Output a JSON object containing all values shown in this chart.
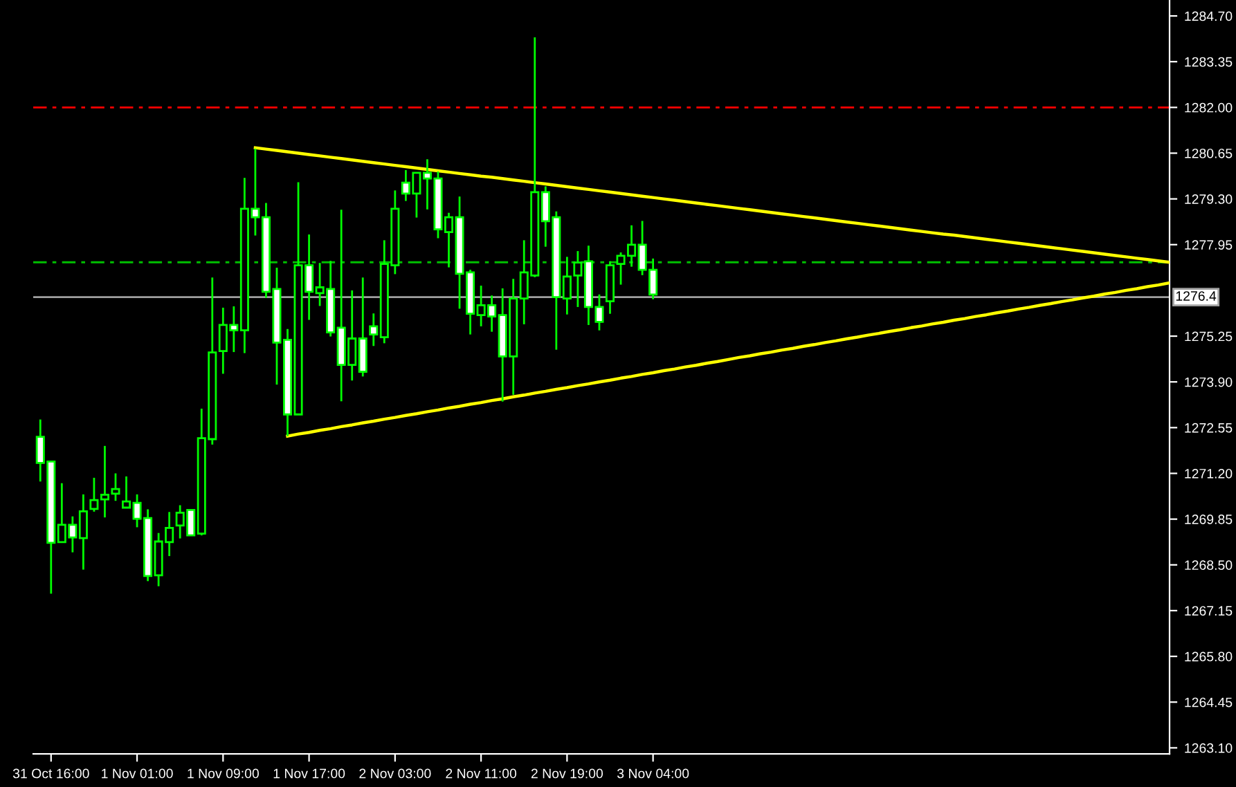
{
  "chart_data": {
    "type": "candlestick",
    "categories": [
      null,
      "31 Oct 16:00",
      null,
      null,
      null,
      null,
      null,
      null,
      null,
      "1 Nov 01:00",
      null,
      null,
      null,
      null,
      null,
      null,
      null,
      "1 Nov 09:00",
      null,
      null,
      null,
      null,
      null,
      null,
      null,
      "1 Nov 17:00",
      null,
      null,
      null,
      null,
      null,
      null,
      null,
      "2 Nov 03:00",
      null,
      null,
      null,
      null,
      null,
      null,
      null,
      "2 Nov 11:00",
      null,
      null,
      null,
      null,
      null,
      null,
      null,
      "2 Nov 19:00",
      null,
      null,
      null,
      null,
      null,
      null,
      null,
      "3 Nov 04:00",
      null,
      null,
      null,
      null,
      null,
      null,
      null,
      null,
      null,
      null,
      null,
      null,
      null,
      null,
      null,
      null,
      null,
      null,
      null,
      null,
      null,
      null,
      null,
      null,
      null,
      null,
      null,
      null,
      null,
      null,
      null,
      null,
      null,
      null,
      null,
      null,
      null,
      null,
      null,
      null,
      null,
      null,
      null,
      null,
      null,
      null,
      null,
      null
    ],
    "ohlc": [
      [
        1272.28,
        1272.79,
        1270.96,
        1271.51
      ],
      [
        1271.55,
        1271.55,
        1267.65,
        1269.15
      ],
      [
        1269.17,
        1270.91,
        1269.17,
        1269.68
      ],
      [
        1269.68,
        1269.93,
        1268.87,
        1269.31
      ],
      [
        1269.29,
        1270.58,
        1268.36,
        1270.08
      ],
      [
        1270.15,
        1271.07,
        1270.07,
        1270.41
      ],
      [
        1270.43,
        1272.01,
        1269.9,
        1270.57
      ],
      [
        1270.6,
        1271.2,
        1270.39,
        1270.74
      ],
      [
        1270.19,
        1271.11,
        1270.19,
        1270.37
      ],
      [
        1270.33,
        1270.58,
        1269.61,
        1269.86
      ],
      [
        1269.88,
        1270.14,
        1268.02,
        1268.17
      ],
      [
        1268.19,
        1269.44,
        1267.87,
        1269.19
      ],
      [
        1269.17,
        1270.06,
        1268.76,
        1269.59
      ],
      [
        1269.66,
        1270.26,
        1269.28,
        1270.04
      ],
      [
        1270.12,
        1270.12,
        1269.37,
        1269.37
      ],
      [
        1269.42,
        1273.11,
        1269.37,
        1272.24
      ],
      [
        1272.21,
        1276.98,
        1272.05,
        1274.77
      ],
      [
        1274.81,
        1276.09,
        1274.14,
        1275.58
      ],
      [
        1275.58,
        1276.13,
        1274.78,
        1275.42
      ],
      [
        1275.42,
        1279.92,
        1274.75,
        1279.01
      ],
      [
        1279.01,
        1280.78,
        1278.22,
        1278.76
      ],
      [
        1278.76,
        1279.18,
        1276.38,
        1276.56
      ],
      [
        1276.64,
        1277.27,
        1273.82,
        1275.06
      ],
      [
        1275.14,
        1275.46,
        1272.3,
        1272.94
      ],
      [
        1272.94,
        1279.79,
        1272.94,
        1277.34
      ],
      [
        1277.34,
        1278.25,
        1275.73,
        1276.56
      ],
      [
        1276.52,
        1277.41,
        1276.14,
        1276.69
      ],
      [
        1276.64,
        1277.47,
        1275.24,
        1275.36
      ],
      [
        1275.5,
        1278.98,
        1273.33,
        1274.4
      ],
      [
        1274.4,
        1276.6,
        1273.94,
        1275.18
      ],
      [
        1275.18,
        1276.98,
        1274.06,
        1274.2
      ],
      [
        1275.54,
        1275.92,
        1274.96,
        1275.3
      ],
      [
        1275.22,
        1278.08,
        1275.04,
        1277.38
      ],
      [
        1277.34,
        1279.55,
        1277.08,
        1279.01
      ],
      [
        1279.78,
        1280.15,
        1279.24,
        1279.46
      ],
      [
        1279.46,
        1280.07,
        1278.75,
        1280.07
      ],
      [
        1280.07,
        1280.47,
        1278.99,
        1279.9
      ],
      [
        1279.9,
        1280.11,
        1278.14,
        1278.4
      ],
      [
        1278.32,
        1278.89,
        1277.28,
        1278.76
      ],
      [
        1278.76,
        1279.37,
        1276.06,
        1277.09
      ],
      [
        1277.13,
        1277.21,
        1275.3,
        1275.91
      ],
      [
        1275.87,
        1276.74,
        1275.54,
        1276.16
      ],
      [
        1276.16,
        1276.45,
        1275.38,
        1275.83
      ],
      [
        1275.87,
        1276.66,
        1273.32,
        1274.65
      ],
      [
        1274.65,
        1276.94,
        1273.52,
        1276.36
      ],
      [
        1276.36,
        1278.08,
        1275.6,
        1277.13
      ],
      [
        1277.04,
        1284.07,
        1276.99,
        1279.5
      ],
      [
        1279.5,
        1279.67,
        1277.89,
        1278.64
      ],
      [
        1278.76,
        1278.93,
        1274.85,
        1276.4
      ],
      [
        1276.36,
        1277.59,
        1275.89,
        1277.01
      ],
      [
        1277.04,
        1277.76,
        1276.11,
        1277.42
      ],
      [
        1277.46,
        1277.92,
        1275.58,
        1276.11
      ],
      [
        1276.11,
        1276.48,
        1275.42,
        1275.67
      ],
      [
        1276.28,
        1277.46,
        1275.91,
        1277.34
      ],
      [
        1277.38,
        1277.72,
        1276.77,
        1277.62
      ],
      [
        1277.62,
        1278.52,
        1277.3,
        1277.95
      ],
      [
        1277.95,
        1278.65,
        1277.05,
        1277.21
      ],
      [
        1277.21,
        1277.54,
        1276.34,
        1276.48
      ],
      null,
      null,
      null,
      null,
      null,
      null,
      null,
      null,
      null,
      null,
      null,
      null,
      null,
      null,
      null,
      null,
      null,
      null,
      null,
      null,
      null,
      null,
      null,
      null,
      null,
      null,
      null,
      null,
      null,
      null,
      null,
      null,
      null,
      null,
      null,
      null,
      null,
      null,
      null,
      null,
      null,
      null,
      null,
      null,
      null,
      null,
      null,
      null
    ],
    "series": [
      {
        "type": "line",
        "color": "#ffff00",
        "values": [
          null,
          null,
          null,
          null,
          null,
          null,
          null,
          null,
          null,
          null,
          null,
          null,
          null,
          null,
          null,
          null,
          null,
          null,
          null,
          null,
          1280.81,
          1280.77,
          1280.73,
          1280.69,
          1280.65,
          1280.61,
          1280.57,
          1280.53,
          1280.49,
          1280.45,
          1280.41,
          1280.37,
          1280.33,
          1280.29,
          1280.25,
          1280.21,
          1280.17,
          1280.13,
          1280.09,
          1280.05,
          1280.01,
          1279.97,
          1279.94,
          1279.9,
          1279.86,
          1279.82,
          1279.78,
          1279.74,
          1279.7,
          1279.66,
          1279.62,
          1279.58,
          1279.54,
          1279.5,
          1279.46,
          1279.42,
          1279.38,
          1279.34,
          1279.3,
          1279.26,
          1279.22,
          1279.18,
          1279.14,
          1279.1,
          1279.06,
          1279.02,
          1278.98,
          1278.94,
          1278.9,
          1278.86,
          1278.82,
          1278.78,
          1278.74,
          1278.7,
          1278.66,
          1278.62,
          1278.58,
          1278.54,
          1278.5,
          1278.46,
          1278.42,
          1278.38,
          1278.34,
          1278.3,
          1278.26,
          1278.23,
          1278.19,
          1278.15,
          1278.11,
          1278.07,
          1278.03,
          1277.99,
          1277.95,
          1277.91,
          1277.87,
          1277.83,
          1277.79,
          1277.75,
          1277.71,
          1277.67,
          1277.63,
          1277.59,
          1277.55,
          1277.51,
          1277.47,
          1277.43
        ]
      },
      {
        "type": "line",
        "color": "#ffff00",
        "values": [
          null,
          null,
          null,
          null,
          null,
          null,
          null,
          null,
          null,
          null,
          null,
          null,
          null,
          null,
          null,
          null,
          null,
          null,
          null,
          null,
          null,
          null,
          null,
          1272.3,
          1272.36,
          1272.41,
          1272.47,
          1272.52,
          1272.58,
          1272.63,
          1272.69,
          1272.74,
          1272.8,
          1272.85,
          1272.91,
          1272.96,
          1273.02,
          1273.07,
          1273.13,
          1273.18,
          1273.24,
          1273.29,
          1273.35,
          1273.4,
          1273.46,
          1273.51,
          1273.57,
          1273.62,
          1273.68,
          1273.73,
          1273.79,
          1273.84,
          1273.9,
          1273.95,
          1274.01,
          1274.06,
          1274.12,
          1274.17,
          1274.23,
          1274.28,
          1274.34,
          1274.39,
          1274.45,
          1274.5,
          1274.56,
          1274.62,
          1274.67,
          1274.73,
          1274.78,
          1274.84,
          1274.89,
          1274.95,
          1275.0,
          1275.06,
          1275.11,
          1275.17,
          1275.22,
          1275.28,
          1275.33,
          1275.39,
          1275.44,
          1275.5,
          1275.55,
          1275.61,
          1275.66,
          1275.72,
          1275.77,
          1275.83,
          1275.88,
          1275.94,
          1275.99,
          1276.05,
          1276.1,
          1276.16,
          1276.21,
          1276.27,
          1276.32,
          1276.38,
          1276.43,
          1276.49,
          1276.54,
          1276.6,
          1276.65,
          1276.71,
          1276.76,
          1276.82
        ]
      }
    ],
    "ref_lines": [
      {
        "axis": "y",
        "value": 1282.0,
        "label": null,
        "color": "#ff0000",
        "line_style": "dashed"
      },
      {
        "axis": "y",
        "value": 1277.43,
        "label": null,
        "color": "#00c000",
        "line_style": "dashed"
      },
      {
        "axis": "y",
        "value": 1276.4,
        "label": "1276.4",
        "color": "#a0a0a0",
        "line_style": "solid"
      }
    ],
    "ylim": [
      1262.92,
      1285.17
    ],
    "yticks": [
      {
        "value": 1263.1,
        "label": "1263.10"
      },
      {
        "value": 1264.45,
        "label": "1264.45"
      },
      {
        "value": 1265.8,
        "label": "1265.80"
      },
      {
        "value": 1267.15,
        "label": "1267.15"
      },
      {
        "value": 1268.5,
        "label": "1268.50"
      },
      {
        "value": 1269.85,
        "label": "1269.85"
      },
      {
        "value": 1271.2,
        "label": "1271.20"
      },
      {
        "value": 1272.55,
        "label": "1272.55"
      },
      {
        "value": 1273.9,
        "label": "1273.90"
      },
      {
        "value": 1275.25,
        "label": "1275.25"
      },
      {
        "value": 1277.95,
        "label": "1277.95"
      },
      {
        "value": 1279.3,
        "label": "1279.30"
      },
      {
        "value": 1280.65,
        "label": "1280.65"
      },
      {
        "value": 1282.0,
        "label": "1282.00"
      },
      {
        "value": 1283.35,
        "label": "1283.35"
      },
      {
        "value": 1284.7,
        "label": "1284.70"
      }
    ],
    "grid": false,
    "legend": false
  }
}
